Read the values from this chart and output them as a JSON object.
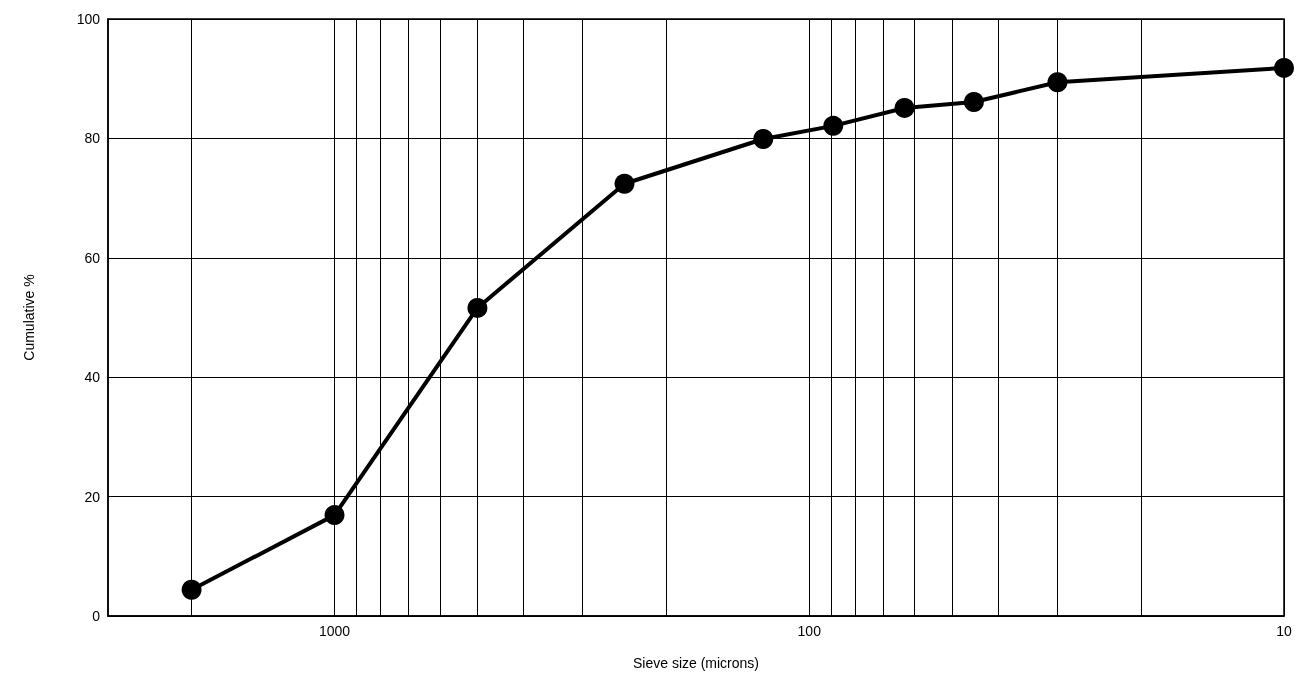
{
  "chart_data": {
    "type": "line",
    "xlabel": "Sieve size (microns)",
    "ylabel": "Cumulative %",
    "x": [
      2000,
      1000,
      500,
      245,
      125,
      89,
      63,
      45,
      30,
      10
    ],
    "series": [
      {
        "color": "#000000",
        "values": [
          4.4,
          16.9,
          51.6,
          72.4,
          79.9,
          82.1,
          85.1,
          86.1,
          89.4,
          91.8
        ]
      }
    ],
    "log": "x",
    "xlim": [
      3000,
      10
    ],
    "xticks": [
      {
        "value": 2000,
        "label": null
      },
      1000,
      {
        "value": 900,
        "label": null
      },
      {
        "value": 800,
        "label": null
      },
      {
        "value": 700,
        "label": null
      },
      {
        "value": 600,
        "label": null
      },
      {
        "value": 500,
        "label": null
      },
      {
        "value": 400,
        "label": null
      },
      {
        "value": 300,
        "label": null
      },
      {
        "value": 200,
        "label": null
      },
      100,
      {
        "value": 90,
        "label": null
      },
      {
        "value": 80,
        "label": null
      },
      {
        "value": 70,
        "label": null
      },
      {
        "value": 60,
        "label": null
      },
      {
        "value": 50,
        "label": null
      },
      {
        "value": 40,
        "label": null
      },
      {
        "value": 30,
        "label": null
      },
      {
        "value": 20,
        "label": null
      },
      10
    ],
    "ylim": [
      0,
      100
    ],
    "yticks": [
      0,
      20,
      40,
      60,
      80,
      100
    ],
    "grid": true,
    "marker": "circle",
    "line_style": "solid"
  }
}
